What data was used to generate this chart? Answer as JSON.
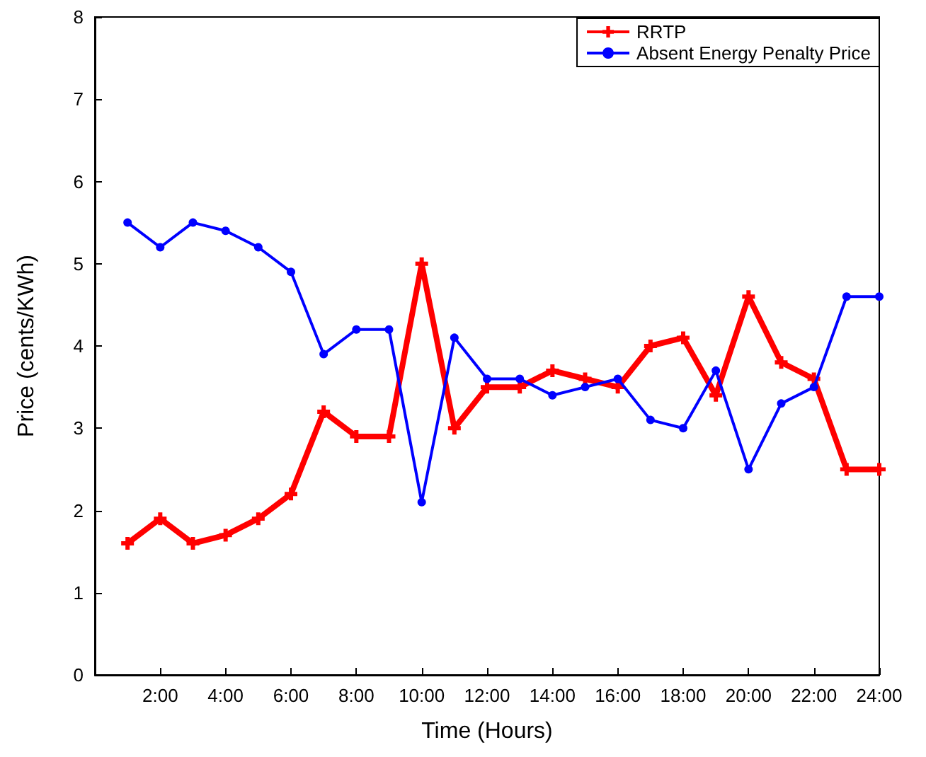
{
  "chart_data": {
    "type": "line",
    "xlabel": "Time (Hours)",
    "ylabel": "Price (cents/KWh)",
    "x": [
      1,
      2,
      3,
      4,
      5,
      6,
      7,
      8,
      9,
      10,
      11,
      12,
      13,
      14,
      15,
      16,
      17,
      18,
      19,
      20,
      21,
      22,
      23,
      24
    ],
    "series": [
      {
        "name": "RRTP",
        "color": "#ff0000",
        "marker": "cross",
        "values": [
          1.6,
          1.9,
          1.6,
          1.7,
          1.9,
          2.2,
          3.2,
          2.9,
          2.9,
          5.0,
          3.0,
          3.5,
          3.5,
          3.7,
          3.6,
          3.5,
          4.0,
          4.1,
          3.4,
          4.6,
          3.8,
          3.6,
          2.5,
          2.5
        ]
      },
      {
        "name": "Absent Energy Penalty Price",
        "color": "#0000ff",
        "marker": "circle",
        "values": [
          5.5,
          5.2,
          5.5,
          5.4,
          5.2,
          4.9,
          3.9,
          4.2,
          4.2,
          2.1,
          4.1,
          3.6,
          3.6,
          3.4,
          3.5,
          3.6,
          3.1,
          3.0,
          3.7,
          2.5,
          3.3,
          3.5,
          4.6,
          4.6
        ]
      }
    ],
    "xlim": [
      0,
      24
    ],
    "xticks": [
      {
        "value": 2,
        "label": "2:00"
      },
      {
        "value": 4,
        "label": "4:00"
      },
      {
        "value": 6,
        "label": "6:00"
      },
      {
        "value": 8,
        "label": "8:00"
      },
      {
        "value": 10,
        "label": "10:00"
      },
      {
        "value": 12,
        "label": "12:00"
      },
      {
        "value": 14,
        "label": "14:00"
      },
      {
        "value": 16,
        "label": "16:00"
      },
      {
        "value": 18,
        "label": "18:00"
      },
      {
        "value": 20,
        "label": "20:00"
      },
      {
        "value": 22,
        "label": "22:00"
      },
      {
        "value": 24,
        "label": "24:00"
      }
    ],
    "ylim": [
      0,
      8
    ],
    "yticks": [
      0,
      1,
      2,
      3,
      4,
      5,
      6,
      7,
      8
    ],
    "legend": "top right",
    "grid": false
  }
}
